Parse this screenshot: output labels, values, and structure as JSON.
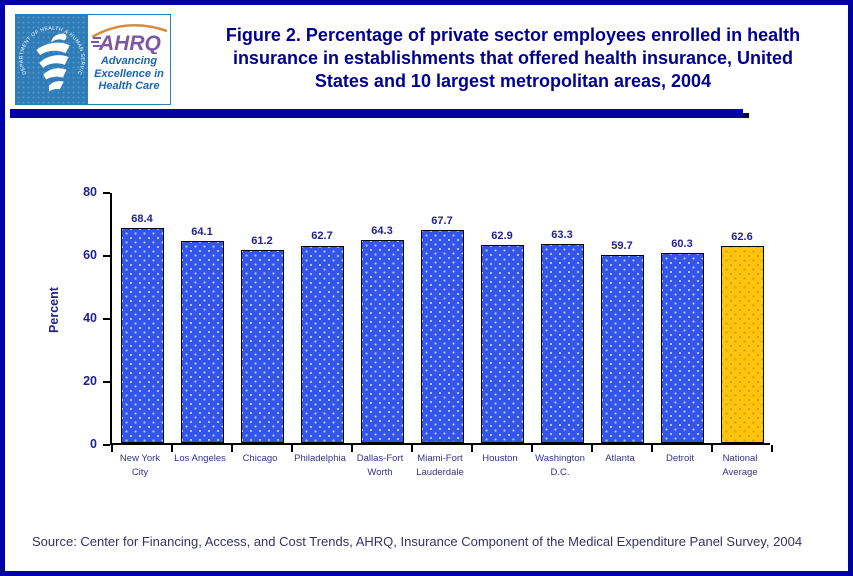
{
  "header": {
    "title_lines": [
      "Figure 2. Percentage of private sector employees enrolled in health",
      "insurance in establishments that offered health insurance, United",
      "States and 10 largest metropolitan areas, 2004"
    ]
  },
  "logo": {
    "seal_text": "DEPARTMENT OF HEALTH & HUMAN SERVICES · USA",
    "acronym": "AHRQ",
    "tagline_lines": [
      "Advancing",
      "Excellence in",
      "Health Care"
    ]
  },
  "chart_data": {
    "type": "bar",
    "title": "",
    "xlabel": "",
    "ylabel": "Percent",
    "ylim": [
      0,
      80
    ],
    "yticks": [
      0,
      20,
      40,
      60,
      80
    ],
    "grid": false,
    "legend": false,
    "categories": [
      "New York City",
      "Los Angeles",
      "Chicago",
      "Philadelphia",
      "Dallas-Fort Worth",
      "Miami-Fort Lauderdale",
      "Houston",
      "Washington D.C.",
      "Atlanta",
      "Detroit",
      "National Average"
    ],
    "values": [
      68.4,
      64.1,
      61.2,
      62.7,
      64.3,
      67.7,
      62.9,
      63.3,
      59.7,
      60.3,
      62.6
    ],
    "highlight_index": 10,
    "highlight_category": "National Average"
  },
  "colors": {
    "border_blue": "#0000a6",
    "title_navy": "#00008f",
    "chart_text_navy": "#1f1f8f",
    "category_text": "#333388",
    "source_text": "#333366",
    "bar_blue": "#3355e8",
    "bar_gold": "#ffc40d",
    "logo_blue": "#2e7cb8",
    "ahrq_purple": "#7e57a4",
    "tagline_blue": "#1a64b4",
    "arc_orange": "#d98a3a"
  },
  "footer": {
    "source": "Source: Center for Financing, Access, and Cost Trends, AHRQ, Insurance Component of the Medical Expenditure Panel Survey, 2004"
  }
}
